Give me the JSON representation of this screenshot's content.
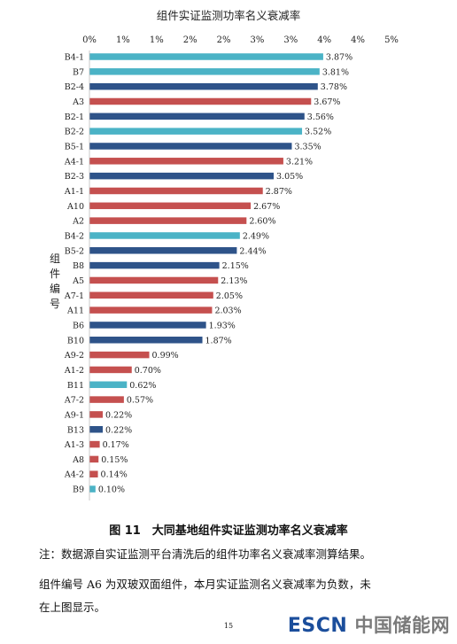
{
  "chart_data": {
    "type": "bar",
    "orientation": "horizontal",
    "title": "组件实证监测功率名义衰减率",
    "ylabel": "组件编号",
    "xlim": [
      0,
      5
    ],
    "xticks": [
      "0%",
      "1%",
      "1%",
      "2%",
      "2%",
      "3%",
      "3%",
      "4%",
      "4%",
      "5%"
    ],
    "categories": [
      "B4-1",
      "B7",
      "B2-4",
      "A3",
      "B2-1",
      "B2-2",
      "B5-1",
      "A4-1",
      "B2-3",
      "A1-1",
      "A10",
      "A2",
      "B4-2",
      "B5-2",
      "B8",
      "A5",
      "A7-1",
      "A11",
      "B6",
      "B10",
      "A9-2",
      "A1-2",
      "B11",
      "A7-2",
      "A9-1",
      "B13",
      "A1-3",
      "A8",
      "A4-2",
      "B9"
    ],
    "values": [
      3.87,
      3.81,
      3.78,
      3.67,
      3.56,
      3.52,
      3.35,
      3.21,
      3.05,
      2.87,
      2.67,
      2.6,
      2.49,
      2.44,
      2.15,
      2.13,
      2.05,
      2.03,
      1.93,
      1.87,
      0.99,
      0.7,
      0.62,
      0.57,
      0.22,
      0.22,
      0.17,
      0.15,
      0.14,
      0.1
    ],
    "value_labels": [
      "3.87%",
      "3.81%",
      "3.78%",
      "3.67%",
      "3.56%",
      "3.52%",
      "3.35%",
      "3.21%",
      "3.05%",
      "2.87%",
      "2.67%",
      "2.60%",
      "2.49%",
      "2.44%",
      "2.15%",
      "2.13%",
      "2.05%",
      "2.03%",
      "1.93%",
      "1.87%",
      "0.99%",
      "0.70%",
      "0.62%",
      "0.57%",
      "0.22%",
      "0.22%",
      "0.17%",
      "0.15%",
      "0.14%",
      "0.10%"
    ],
    "bar_colors": [
      "#4bb3c6",
      "#4bb3c6",
      "#2e5389",
      "#c5504f",
      "#2e5389",
      "#4bb3c6",
      "#2e5389",
      "#c5504f",
      "#2e5389",
      "#c5504f",
      "#c5504f",
      "#c5504f",
      "#4bb3c6",
      "#2e5389",
      "#2e5389",
      "#c5504f",
      "#c5504f",
      "#c5504f",
      "#2e5389",
      "#2e5389",
      "#c5504f",
      "#c5504f",
      "#4bb3c6",
      "#c5504f",
      "#c5504f",
      "#2e5389",
      "#c5504f",
      "#c5504f",
      "#c5504f",
      "#4bb3c6"
    ],
    "grid": false,
    "legend": "none"
  },
  "caption": "图 11　大同基地组件实证监测功率名义衰减率",
  "notes": [
    "注：数据源自实证监测平台清洗后的组件功率名义衰减率测算结果。",
    "组件编号 A6 为双玻双面组件，本月实证监测名义衰减率为负数，未",
    "在上图显示。"
  ],
  "page_number": "15",
  "watermark": {
    "latin": "ESCN",
    "cn": "中国储能网"
  }
}
